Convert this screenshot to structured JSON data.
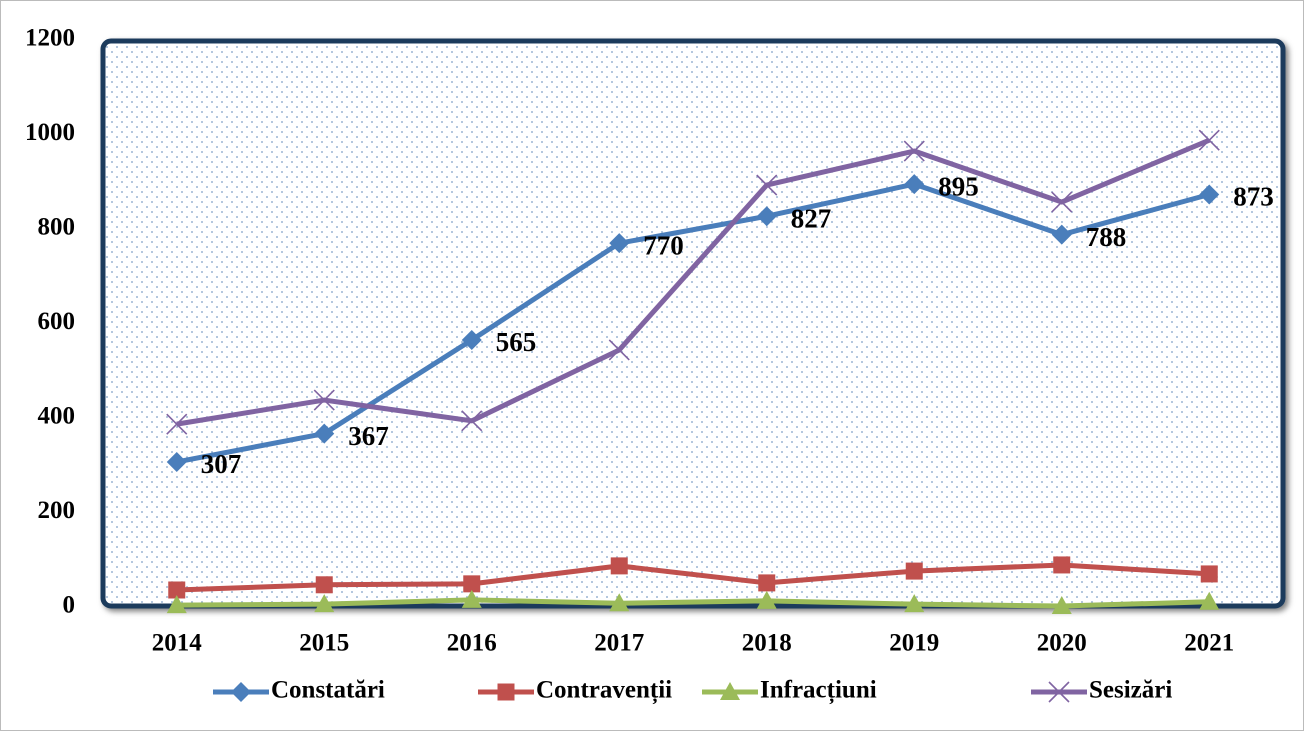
{
  "chart_data": {
    "type": "line",
    "categories": [
      "2014",
      "2015",
      "2016",
      "2017",
      "2018",
      "2019",
      "2020",
      "2021"
    ],
    "series": [
      {
        "name": "Constatări",
        "color": "#4a7ebb",
        "marker": "diamond",
        "show_labels": true,
        "values": [
          307,
          367,
          565,
          770,
          827,
          895,
          788,
          873
        ]
      },
      {
        "name": "Contravenții",
        "color": "#c0504d",
        "marker": "square",
        "values": [
          36,
          47,
          49,
          87,
          51,
          76,
          89,
          70
        ]
      },
      {
        "name": "Infracțiuni",
        "color": "#9bbb59",
        "marker": "triangle",
        "values": [
          4,
          6,
          15,
          8,
          13,
          6,
          2,
          11
        ]
      },
      {
        "name": "Sesizări",
        "color": "#8064a2",
        "marker": "x",
        "values": [
          387,
          438,
          394,
          544,
          893,
          965,
          857,
          988
        ]
      }
    ],
    "ylim": [
      0,
      1200
    ],
    "yticks": [
      0,
      200,
      400,
      600,
      800,
      1000,
      1200
    ],
    "grid": false,
    "legend": "bottom"
  }
}
